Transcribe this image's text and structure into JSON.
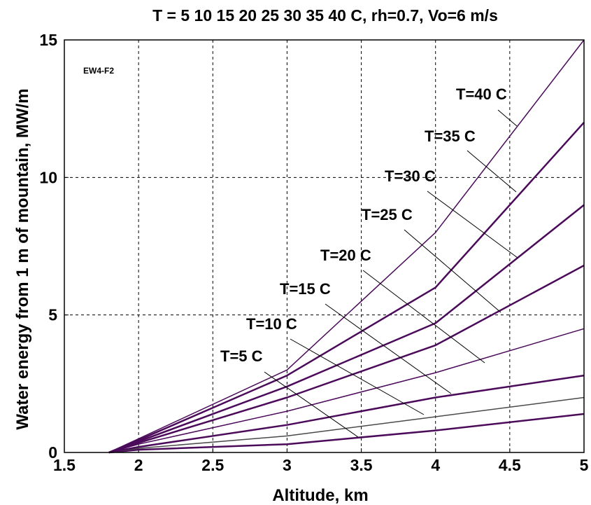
{
  "chart_data": {
    "type": "line",
    "title": "T = 5  10  15  20  25  30  35  40 C, rh=0.7, Vo=6 m/s",
    "xlabel": "Altitude, km",
    "ylabel": "Water energy from 1  m of mountain, MW/m",
    "xlim": [
      1.5,
      5
    ],
    "ylim": [
      0,
      15
    ],
    "xticks": [
      "1.5",
      "2",
      "2.5",
      "3",
      "3.5",
      "4",
      "4.5",
      "5"
    ],
    "yticks": [
      "0",
      "5",
      "10",
      "15"
    ],
    "grid": true,
    "annotation": "EW4-F2",
    "line_color": "#4b0a5a",
    "x": [
      1.8,
      2,
      3,
      4,
      5
    ],
    "series": [
      {
        "name": "T=5 C",
        "values": [
          0,
          0.1,
          0.3,
          0.8,
          1.4
        ]
      },
      {
        "name": "T=10 C",
        "values": [
          0,
          0.15,
          0.6,
          1.3,
          2.0
        ]
      },
      {
        "name": "T=15 C",
        "values": [
          0,
          0.2,
          1.0,
          2.0,
          2.8
        ]
      },
      {
        "name": "T=20 C",
        "values": [
          0,
          0.3,
          1.5,
          2.9,
          4.5
        ]
      },
      {
        "name": "T=25 C",
        "values": [
          0,
          0.35,
          2.0,
          3.9,
          6.8
        ]
      },
      {
        "name": "T=30 C",
        "values": [
          0,
          0.4,
          2.4,
          4.7,
          9.0
        ]
      },
      {
        "name": "T=35 C",
        "values": [
          0,
          0.45,
          2.8,
          6.0,
          12.0
        ]
      },
      {
        "name": "T=40 C",
        "values": [
          0,
          0.5,
          3.0,
          8.0,
          15.0
        ]
      }
    ]
  }
}
